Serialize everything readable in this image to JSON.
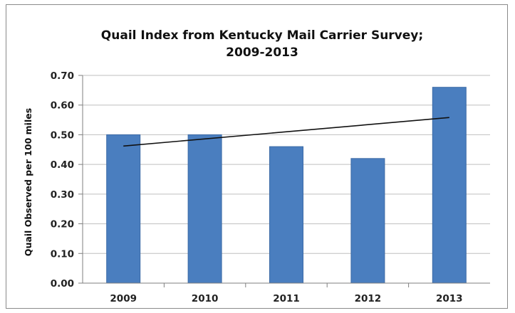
{
  "chart_data": {
    "type": "bar",
    "title": [
      "Quail Index from Kentucky Mail Carrier Survey;",
      "2009-2013"
    ],
    "xlabel": "",
    "ylabel": "Quail Observed per 100 miles",
    "categories": [
      "2009",
      "2010",
      "2011",
      "2012",
      "2013"
    ],
    "values": [
      0.5,
      0.5,
      0.46,
      0.42,
      0.66
    ],
    "ylim": [
      0,
      0.7
    ],
    "yticks": [
      "0.00",
      "0.10",
      "0.20",
      "0.30",
      "0.40",
      "0.50",
      "0.60",
      "0.70"
    ],
    "grid": true,
    "legend": "none",
    "trendline": {
      "type": "linear",
      "start": 0.462,
      "end": 0.558
    },
    "colors": {
      "bar": "#4a7ebf",
      "bar_edge": "#3c6aa6",
      "trendline": "#111111",
      "grid": "#bfbfbf",
      "axis": "#7f7f7f"
    }
  }
}
